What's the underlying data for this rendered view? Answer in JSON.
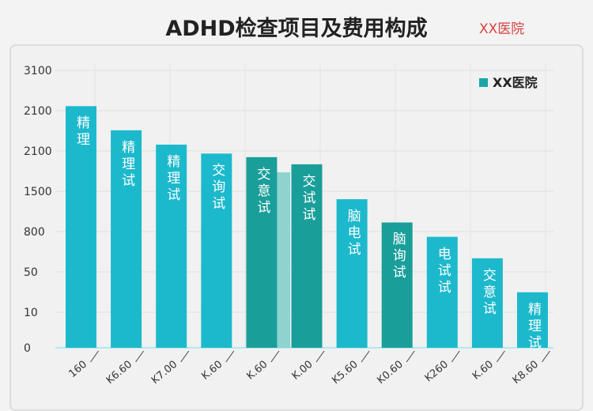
{
  "chart_data": {
    "type": "bar",
    "title": "ADHD检查项目及费用构成",
    "watermark": "XX医院",
    "legend": {
      "label": "XX医院",
      "placement": "top-right",
      "color": "#1aa6a6"
    },
    "y_tick_labels": [
      "0",
      "10",
      "50",
      "800",
      "1500",
      "2100",
      "2100",
      "3100"
    ],
    "ylim": [
      0,
      3100
    ],
    "grid": true,
    "categories": [
      "160",
      "K6.60",
      "K7.00",
      "K.60",
      "K.60",
      "K.00",
      "K5.60",
      "K0.60",
      "K260",
      "K.60",
      "K8.60"
    ],
    "bar_labels": [
      "精理",
      "精理试",
      "精理试",
      "交询试",
      "交意试",
      "交试试",
      "脑电试",
      "脑询试",
      "电试试",
      "交意试",
      "精理试"
    ],
    "values": [
      2700,
      2430,
      2270,
      2170,
      2130,
      2050,
      1660,
      1400,
      1240,
      1000,
      620
    ],
    "bar_colors": [
      "#1cb9cc",
      "#1cb9cc",
      "#1cb9cc",
      "#1cb9cc",
      "#1a9e9a",
      "#1a9e9a",
      "#1cb9cc",
      "#1a9e9a",
      "#1cb9cc",
      "#1cb9cc",
      "#1cb9cc"
    ]
  }
}
